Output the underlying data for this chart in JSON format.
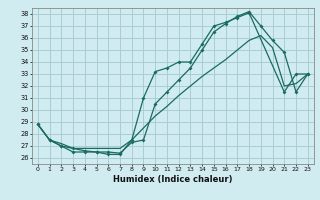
{
  "xlabel": "Humidex (Indice chaleur)",
  "bg_color": "#d1ecf0",
  "grid_color": "#aacdd4",
  "line_color": "#1a6b60",
  "xlim": [
    -0.5,
    23.5
  ],
  "ylim": [
    25.5,
    38.5
  ],
  "yticks": [
    26,
    27,
    28,
    29,
    30,
    31,
    32,
    33,
    34,
    35,
    36,
    37,
    38
  ],
  "xticks": [
    0,
    1,
    2,
    3,
    4,
    5,
    6,
    7,
    8,
    9,
    10,
    11,
    12,
    13,
    14,
    15,
    16,
    17,
    18,
    19,
    20,
    21,
    22,
    23
  ],
  "line1_x": [
    0,
    1,
    2,
    3,
    4,
    5,
    6,
    7,
    8,
    9,
    10,
    11,
    12,
    13,
    14,
    15,
    16,
    17,
    18,
    21,
    22,
    23
  ],
  "line1_y": [
    28.8,
    27.5,
    27.0,
    26.5,
    26.5,
    26.5,
    26.3,
    26.3,
    27.5,
    31.0,
    33.2,
    33.5,
    34.0,
    34.0,
    35.5,
    37.0,
    37.3,
    37.7,
    38.1,
    31.5,
    33.0,
    33.0
  ],
  "line2_x": [
    0,
    1,
    2,
    3,
    4,
    5,
    6,
    7,
    8,
    9,
    10,
    11,
    12,
    13,
    14,
    15,
    16,
    17,
    18,
    19,
    20,
    21,
    22,
    23
  ],
  "line2_y": [
    28.8,
    27.5,
    27.0,
    26.8,
    26.6,
    26.5,
    26.5,
    26.4,
    27.3,
    27.5,
    30.5,
    31.5,
    32.5,
    33.5,
    35.0,
    36.5,
    37.2,
    37.8,
    38.2,
    37.0,
    35.8,
    34.8,
    31.5,
    33.0
  ],
  "line3_x": [
    0,
    1,
    2,
    3,
    4,
    5,
    6,
    7,
    8,
    9,
    10,
    11,
    12,
    13,
    14,
    15,
    16,
    17,
    18,
    19,
    20,
    21,
    22,
    23
  ],
  "line3_y": [
    28.8,
    27.5,
    27.2,
    26.8,
    26.8,
    26.8,
    26.8,
    26.8,
    27.5,
    28.5,
    29.5,
    30.3,
    31.2,
    32.0,
    32.8,
    33.5,
    34.2,
    35.0,
    35.8,
    36.2,
    35.2,
    32.0,
    32.2,
    33.0
  ]
}
